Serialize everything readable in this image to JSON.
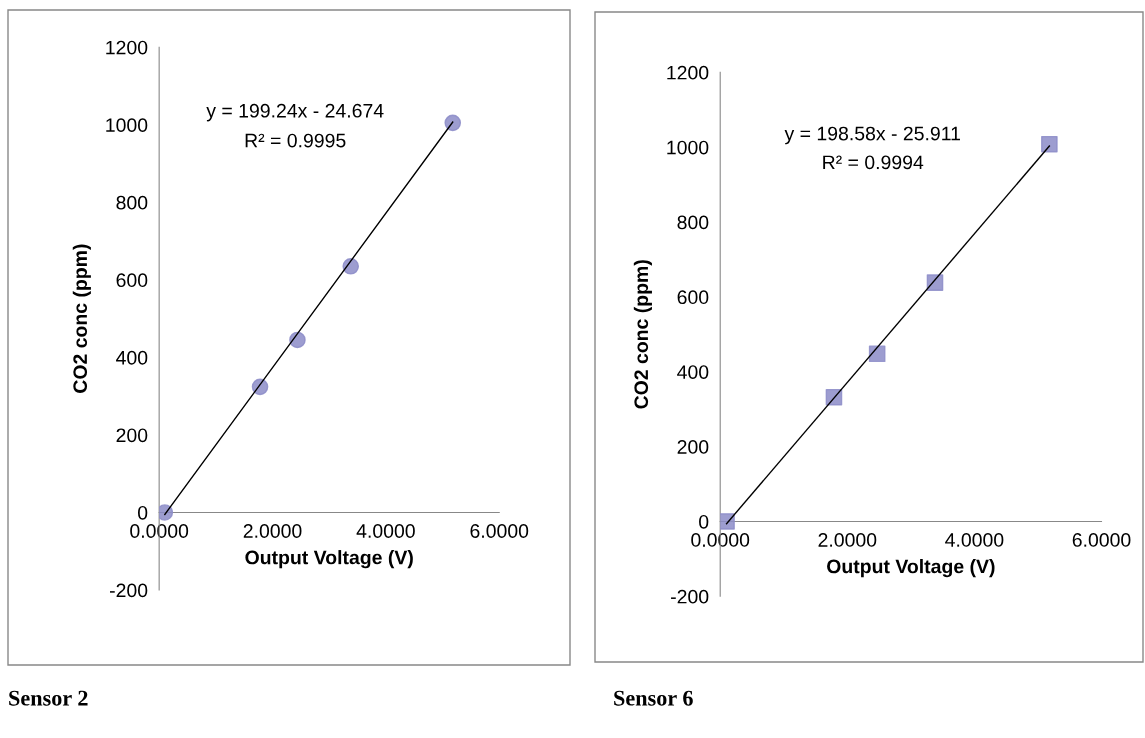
{
  "chart_data": [
    {
      "type": "scatter",
      "title": "Sensor 2",
      "xlabel": "Output Voltage (V)",
      "ylabel": "CO2 conc (ppm)",
      "annotations": [
        "y = 199.24x - 24.674",
        "R² = 0.9995"
      ],
      "xlim": [
        0,
        6
      ],
      "ylim": [
        -200,
        1200
      ],
      "xticks": [
        {
          "value": 0,
          "label": "0.0000"
        },
        {
          "value": 2,
          "label": "2.0000"
        },
        {
          "value": 4,
          "label": "4.0000"
        },
        {
          "value": 6,
          "label": "6.0000"
        }
      ],
      "yticks": [
        -200,
        0,
        200,
        400,
        600,
        800,
        1000,
        1200
      ],
      "grid": false,
      "marker": "circle",
      "series": [
        {
          "color": "#8c8cc8",
          "x": [
            0.1,
            1.78,
            2.44,
            3.38,
            5.18
          ],
          "values": [
            0,
            324,
            445,
            635,
            1005
          ]
        },
        {
          "type": "line",
          "color": "#000000",
          "marker": "none",
          "x": [
            0.1,
            5.18
          ],
          "values": [
            -5,
            1007
          ]
        }
      ]
    },
    {
      "type": "scatter",
      "title": "Sensor 6",
      "xlabel": "Output Voltage (V)",
      "ylabel": "CO2 conc (ppm)",
      "annotations": [
        "y = 198.58x - 25.911",
        "R² = 0.9994"
      ],
      "xlim": [
        0,
        6
      ],
      "ylim": [
        -200,
        1200
      ],
      "xticks": [
        {
          "value": 0,
          "label": "0.0000"
        },
        {
          "value": 2,
          "label": "2.0000"
        },
        {
          "value": 4,
          "label": "4.0000"
        },
        {
          "value": 6,
          "label": "6.0000"
        }
      ],
      "yticks": [
        -200,
        0,
        200,
        400,
        600,
        800,
        1000,
        1200
      ],
      "grid": false,
      "marker": "square",
      "series": [
        {
          "color": "#8c8cc8",
          "x": [
            0.1,
            1.79,
            2.47,
            3.38,
            5.18
          ],
          "values": [
            0,
            332,
            448,
            638,
            1008
          ]
        },
        {
          "type": "line",
          "color": "#000000",
          "marker": "none",
          "x": [
            0.1,
            5.18
          ],
          "values": [
            -6,
            1003
          ]
        }
      ]
    }
  ]
}
